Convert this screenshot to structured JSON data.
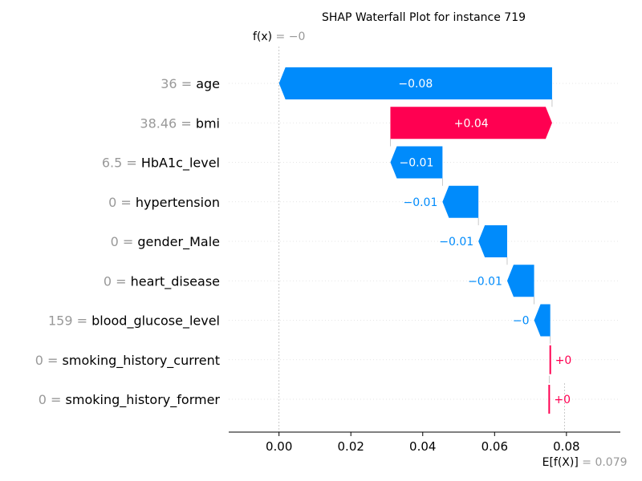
{
  "chart_data": {
    "type": "waterfall",
    "title": "SHAP Waterfall Plot for instance 719",
    "fx": {
      "prefix": "f(x)",
      "value_text": "= −0",
      "value": 0.0
    },
    "base": {
      "prefix": "E[f(X)]",
      "value_text": "= 0.079",
      "value": 0.0795
    },
    "features": [
      {
        "name": "age",
        "value": "36",
        "shap": -0.076,
        "label": "−0.08"
      },
      {
        "name": "bmi",
        "value": "38.46",
        "shap": 0.045,
        "label": "+0.04"
      },
      {
        "name": "HbA1c_level",
        "value": "6.5",
        "shap": -0.0145,
        "label": "−0.01"
      },
      {
        "name": "hypertension",
        "value": "0",
        "shap": -0.01,
        "label": "−0.01"
      },
      {
        "name": "gender_Male",
        "value": "0",
        "shap": -0.008,
        "label": "−0.01"
      },
      {
        "name": "heart_disease",
        "value": "0",
        "shap": -0.0075,
        "label": "−0.01"
      },
      {
        "name": "blood_glucose_level",
        "value": "159",
        "shap": -0.0045,
        "label": "−0"
      },
      {
        "name": "smoking_history_current",
        "value": "0",
        "shap": 0.0003,
        "label": "+0"
      },
      {
        "name": "smoking_history_former",
        "value": "0",
        "shap": 0.0002,
        "label": "+0"
      }
    ],
    "xlim": [
      -0.014,
      0.095
    ],
    "xticks": [
      0.0,
      0.02,
      0.04,
      0.06,
      0.08
    ],
    "xtick_labels": [
      "0.00",
      "0.02",
      "0.04",
      "0.06",
      "0.08"
    ],
    "colors": {
      "positive": "#ff0051",
      "negative": "#008bfb",
      "muted": "#999999"
    }
  }
}
